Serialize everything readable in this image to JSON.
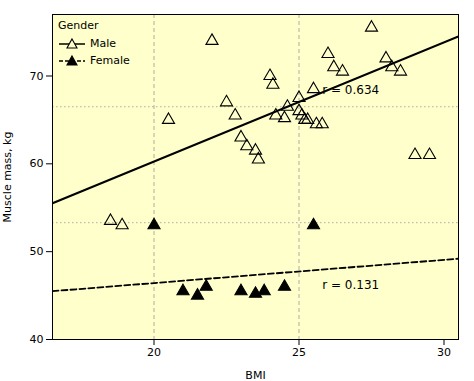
{
  "chart_data": {
    "type": "scatter",
    "xlabel": "BMI",
    "ylabel": "Muscle mass, kg",
    "xlim": [
      16.5,
      30.5
    ],
    "ylim": [
      40,
      77
    ],
    "xticks": [
      20,
      25,
      30
    ],
    "yticks": [
      40,
      50,
      60,
      70
    ],
    "background": "#ffffcc",
    "reference_lines": {
      "x": [
        20,
        25
      ],
      "y": [
        53.3,
        66.5
      ],
      "color": "#999999"
    },
    "legend": "upper left",
    "legend_title": "Gender",
    "series": [
      {
        "name": "Male",
        "color": "#000000",
        "marker": "triangle_open",
        "line_style": "solid",
        "x": [
          18.5,
          18.9,
          20.5,
          22.0,
          22.5,
          22.8,
          23.0,
          23.2,
          23.5,
          23.6,
          24.0,
          24.1,
          24.2,
          24.5,
          24.6,
          25.0,
          25.0,
          25.1,
          25.2,
          25.3,
          25.5,
          25.6,
          25.8,
          26.0,
          26.2,
          26.5,
          27.5,
          28.0,
          28.2,
          28.5,
          29.0,
          29.5
        ],
        "values": [
          53.5,
          53.0,
          65.0,
          74.0,
          67.0,
          65.5,
          63.0,
          62.0,
          61.5,
          60.5,
          70.0,
          69.0,
          65.5,
          65.2,
          66.5,
          67.5,
          66.0,
          65.5,
          65.0,
          65.0,
          68.5,
          64.5,
          64.5,
          72.5,
          71.0,
          70.5,
          75.5,
          72.0,
          71.0,
          70.5,
          61.0,
          61.0
        ],
        "fit": {
          "x": [
            16.5,
            30.5
          ],
          "values": [
            55.5,
            74.5
          ]
        }
      },
      {
        "name": "Female",
        "color": "#000000",
        "marker": "triangle",
        "line_style": "dashed",
        "x": [
          20.0,
          21.0,
          21.5,
          21.8,
          23.0,
          23.5,
          23.8,
          24.5,
          25.5
        ],
        "values": [
          53.0,
          45.5,
          45.0,
          46.0,
          45.5,
          45.2,
          45.5,
          46.0,
          53.0
        ],
        "fit": {
          "x": [
            16.5,
            30.5
          ],
          "values": [
            45.5,
            49.2
          ]
        }
      }
    ],
    "annotations": [
      {
        "text": "r = 0.634",
        "x": 25.8,
        "y": 68.0
      },
      {
        "text": "r = 0.131",
        "x": 25.8,
        "y": 45.8
      }
    ]
  }
}
